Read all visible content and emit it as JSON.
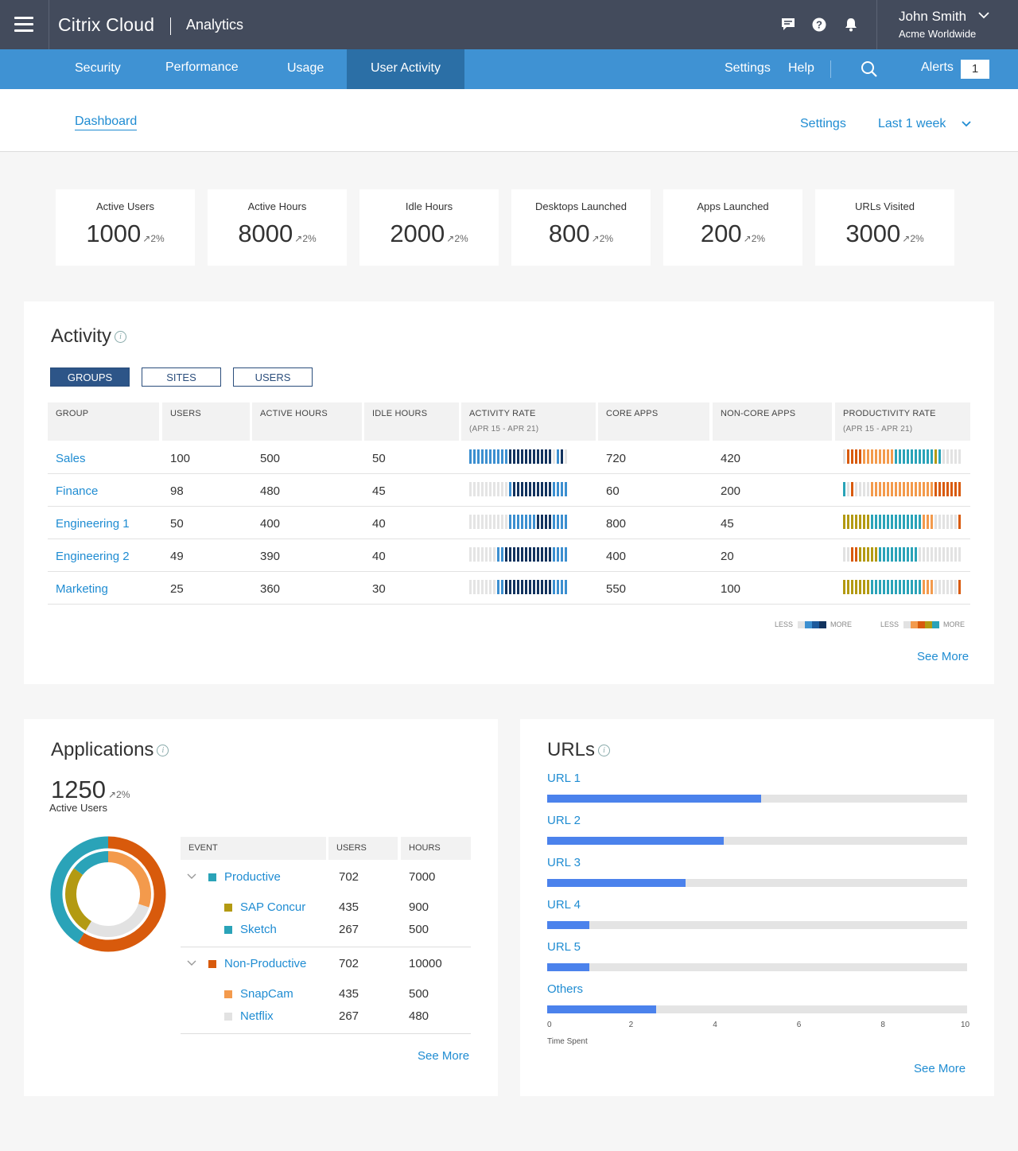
{
  "topbar": {
    "brand": "Citrix Cloud",
    "app": "Analytics",
    "user_name": "John Smith",
    "user_org": "Acme Worldwide"
  },
  "nav": {
    "tabs": [
      "Security",
      "Performance",
      "Usage",
      "User Activity"
    ],
    "active": "User Activity",
    "settings": "Settings",
    "help": "Help",
    "alerts_label": "Alerts",
    "alerts_count": "1"
  },
  "subheader": {
    "dashboard": "Dashboard",
    "settings": "Settings",
    "period": "Last 1 week"
  },
  "kpis": [
    {
      "label": "Active Users",
      "value": "1000",
      "delta": "2%"
    },
    {
      "label": "Active Hours",
      "value": "8000",
      "delta": "2%"
    },
    {
      "label": "Idle Hours",
      "value": "2000",
      "delta": "2%"
    },
    {
      "label": "Desktops Launched",
      "value": "800",
      "delta": "2%"
    },
    {
      "label": "Apps Launched",
      "value": "200",
      "delta": "2%"
    },
    {
      "label": "URLs Visited",
      "value": "3000",
      "delta": "2%"
    }
  ],
  "activity": {
    "title": "Activity",
    "toggles": [
      "GROUPS",
      "SITES",
      "USERS"
    ],
    "headers": [
      "GROUP",
      "USERS",
      "ACTIVE HOURS",
      "IDLE HOURS",
      "ACTIVITY RATE",
      "CORE APPS",
      "NON-CORE APPS",
      "PRODUCTIVITY RATE"
    ],
    "date_range": "(APR 15 - APR 21)",
    "rows": [
      {
        "group": "Sales",
        "users": "100",
        "active": "500",
        "idle": "50",
        "core": "720",
        "noncore": "420",
        "act": [
          3,
          3,
          3,
          3,
          3,
          3,
          3,
          3,
          3,
          3,
          4,
          4,
          4,
          4,
          4,
          4,
          4,
          4,
          4,
          4,
          4,
          0,
          3,
          4,
          0
        ],
        "prod": [
          0,
          5,
          5,
          5,
          5,
          4,
          4,
          4,
          4,
          4,
          4,
          4,
          4,
          2,
          2,
          2,
          2,
          2,
          2,
          2,
          2,
          2,
          2,
          3,
          2,
          0,
          0,
          0,
          0,
          0
        ]
      },
      {
        "group": "Finance",
        "users": "98",
        "active": "480",
        "idle": "45",
        "core": "60",
        "noncore": "200",
        "act": [
          0,
          0,
          0,
          0,
          0,
          0,
          0,
          0,
          0,
          0,
          3,
          4,
          4,
          4,
          4,
          4,
          4,
          4,
          4,
          4,
          4,
          3,
          3,
          3,
          3
        ],
        "prod": [
          2,
          0,
          5,
          0,
          0,
          0,
          0,
          4,
          4,
          4,
          4,
          4,
          4,
          4,
          4,
          4,
          4,
          4,
          4,
          4,
          4,
          4,
          4,
          5,
          5,
          5,
          5,
          5,
          5,
          5
        ]
      },
      {
        "group": "Engineering 1",
        "users": "50",
        "active": "400",
        "idle": "40",
        "core": "800",
        "noncore": "45",
        "act": [
          0,
          0,
          0,
          0,
          0,
          0,
          0,
          0,
          0,
          0,
          3,
          3,
          3,
          3,
          3,
          3,
          3,
          4,
          4,
          4,
          4,
          3,
          3,
          3,
          3
        ],
        "prod": [
          3,
          3,
          3,
          3,
          3,
          3,
          3,
          2,
          2,
          2,
          2,
          2,
          2,
          2,
          2,
          2,
          2,
          2,
          2,
          2,
          4,
          4,
          4,
          0,
          0,
          0,
          0,
          0,
          0,
          5
        ]
      },
      {
        "group": "Engineering 2",
        "users": "49",
        "active": "390",
        "idle": "40",
        "core": "400",
        "noncore": "20",
        "act": [
          0,
          0,
          0,
          0,
          0,
          0,
          0,
          3,
          3,
          4,
          4,
          4,
          4,
          4,
          4,
          4,
          4,
          4,
          4,
          4,
          4,
          3,
          3,
          3,
          3
        ],
        "prod": [
          0,
          0,
          5,
          5,
          3,
          3,
          3,
          3,
          3,
          2,
          2,
          2,
          2,
          2,
          2,
          2,
          2,
          2,
          2,
          0,
          0,
          0,
          0,
          0,
          0,
          0,
          0,
          0,
          0,
          0
        ]
      },
      {
        "group": "Marketing",
        "users": "25",
        "active": "360",
        "idle": "30",
        "core": "550",
        "noncore": "100",
        "act": [
          0,
          0,
          0,
          0,
          0,
          0,
          0,
          3,
          3,
          4,
          4,
          4,
          4,
          4,
          4,
          4,
          4,
          4,
          4,
          4,
          4,
          3,
          3,
          3,
          3
        ],
        "prod": [
          3,
          3,
          3,
          3,
          3,
          3,
          3,
          2,
          2,
          2,
          2,
          2,
          2,
          2,
          2,
          2,
          2,
          2,
          2,
          2,
          4,
          4,
          4,
          0,
          0,
          0,
          0,
          0,
          0,
          5
        ]
      }
    ],
    "legend_less": "LESS",
    "legend_more": "MORE",
    "see_more": "See More"
  },
  "colors": {
    "activity_scale": [
      "#e4e4e4",
      "#cfcfcf",
      "#8cc3ea",
      "#3c8fd0",
      "#12335e"
    ],
    "productivity_scale": [
      "#e2e2e2",
      "#f07c2a",
      "#2aa3b8",
      "#b39a12",
      "#f39a4c",
      "#d85a0c"
    ]
  },
  "applications": {
    "title": "Applications",
    "total": "1250",
    "delta": "2%",
    "total_label": "Active Users",
    "headers": [
      "EVENT",
      "USERS",
      "HOURS"
    ],
    "groups": [
      {
        "name": "Productive",
        "users": "702",
        "hours": "7000",
        "color": "#2aa3b8",
        "items": [
          {
            "name": "SAP Concur",
            "users": "435",
            "hours": "900",
            "color": "#b39a12"
          },
          {
            "name": "Sketch",
            "users": "267",
            "hours": "500",
            "color": "#2aa3b8"
          }
        ]
      },
      {
        "name": "Non-Productive",
        "users": "702",
        "hours": "10000",
        "color": "#d85a0c",
        "items": [
          {
            "name": "SnapCam",
            "users": "435",
            "hours": "500",
            "color": "#f39a4c"
          },
          {
            "name": "Netflix",
            "users": "267",
            "hours": "480",
            "color": "#e2e2e2"
          }
        ]
      }
    ],
    "see_more": "See More"
  },
  "urls": {
    "title": "URLs",
    "x_label": "Time Spent",
    "ticks": [
      "0",
      "2",
      "4",
      "6",
      "8",
      "10"
    ],
    "see_more": "See More"
  },
  "chart_data": {
    "type": "bar",
    "orientation": "horizontal",
    "categories": [
      "URL 1",
      "URL 2",
      "URL 3",
      "URL 4",
      "URL 5",
      "Others"
    ],
    "values": [
      5.1,
      4.2,
      3.3,
      1.0,
      1.0,
      2.6
    ],
    "xlabel": "Time Spent",
    "xlim": [
      0,
      10
    ],
    "color": "#4b82ec"
  }
}
